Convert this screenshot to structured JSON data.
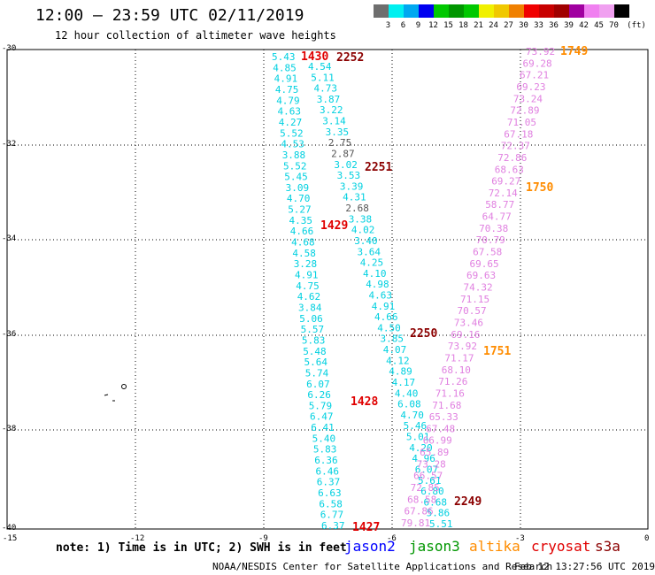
{
  "title": "12:00 – 23:59 UTC 02/11/2019",
  "subtitle": "12 hour collection of altimeter wave heights",
  "colorbar": {
    "labels": [
      "3",
      "6",
      "9",
      "12",
      "15",
      "18",
      "21",
      "24",
      "27",
      "30",
      "33",
      "36",
      "39",
      "42",
      "45",
      "70"
    ],
    "unit": "(ft)",
    "colors": [
      "#6e6e6e",
      "#00f0f0",
      "#00a8f0",
      "#0000f0",
      "#00c800",
      "#009600",
      "#00c800",
      "#f0f000",
      "#f0c800",
      "#f08000",
      "#f00000",
      "#c80000",
      "#a00000",
      "#a000a0",
      "#f080f0",
      "#f0a0f0",
      "#000000"
    ]
  },
  "axes": {
    "lat_labels": [
      "-30",
      "-32",
      "-34",
      "-36",
      "-38",
      "-40"
    ],
    "lon_labels": [
      "-15",
      "-12",
      "-9",
      "-6",
      "-3",
      "0"
    ]
  },
  "note": "note: 1) Time is in UTC; 2) SWH is in feet",
  "legend": [
    {
      "name": "jason2",
      "color": "#0000ff"
    },
    {
      "name": "jason3",
      "color": "#009600"
    },
    {
      "name": "altika",
      "color": "#ff8c00"
    },
    {
      "name": "cryosat",
      "color": "#e00000"
    },
    {
      "name": "s3a",
      "color": "#8b0000"
    }
  ],
  "footer_left": "NOAA/NESDIS Center for Satellite Applications and Research",
  "footer_right": "Feb 12 13:27:56 UTC 2019",
  "colors": {
    "cyan": "#00d0e0",
    "gray": "#555555",
    "pink": "#e080e0",
    "red": "#e00000",
    "darkred": "#8b0000",
    "orange": "#ff8c00"
  },
  "tracks": {
    "track_a": {
      "color_key": "cyan",
      "values": [
        "5.43",
        "4.85",
        "4.91",
        "4.75",
        "4.79",
        "4.63",
        "4.27",
        "5.52",
        "4.53",
        "3.88",
        "5.52",
        "5.45",
        "3.09",
        "4.70",
        "5.27",
        "4.35",
        "4.66",
        "4.68",
        "4.58",
        "3.28",
        "4.91",
        "4.75",
        "4.62",
        "3.84",
        "5.06",
        "5.57",
        "5.83",
        "5.48",
        "5.64",
        "5.74",
        "6.07",
        "6.26",
        "5.79",
        "6.47",
        "6.41",
        "5.40",
        "5.83",
        "6.36",
        "6.46",
        "6.37",
        "6.63",
        "6.58",
        "6.77",
        "6.37"
      ]
    },
    "track_b": {
      "values": [
        {
          "v": "4.54",
          "c": "cyan"
        },
        {
          "v": "5.11",
          "c": "cyan"
        },
        {
          "v": "4.73",
          "c": "cyan"
        },
        {
          "v": "3.87",
          "c": "cyan"
        },
        {
          "v": "3.22",
          "c": "cyan"
        },
        {
          "v": "3.14",
          "c": "cyan"
        },
        {
          "v": "3.35",
          "c": "cyan"
        },
        {
          "v": "2.75",
          "c": "gray"
        },
        {
          "v": "2.87",
          "c": "gray"
        },
        {
          "v": "3.02",
          "c": "cyan"
        },
        {
          "v": "3.53",
          "c": "cyan"
        },
        {
          "v": "3.39",
          "c": "cyan"
        },
        {
          "v": "4.31",
          "c": "cyan"
        },
        {
          "v": "2.68",
          "c": "gray"
        },
        {
          "v": "3.38",
          "c": "cyan"
        },
        {
          "v": "4.02",
          "c": "cyan"
        },
        {
          "v": "3.40",
          "c": "cyan"
        },
        {
          "v": "3.64",
          "c": "cyan"
        },
        {
          "v": "4.25",
          "c": "cyan"
        },
        {
          "v": "4.10",
          "c": "cyan"
        },
        {
          "v": "4.98",
          "c": "cyan"
        },
        {
          "v": "4.63",
          "c": "cyan"
        },
        {
          "v": "4.91",
          "c": "cyan"
        },
        {
          "v": "4.66",
          "c": "cyan"
        },
        {
          "v": "4.50",
          "c": "cyan"
        },
        {
          "v": "3.85",
          "c": "cyan"
        },
        {
          "v": "4.07",
          "c": "cyan"
        },
        {
          "v": "4.12",
          "c": "cyan"
        },
        {
          "v": "4.89",
          "c": "cyan"
        },
        {
          "v": "4.17",
          "c": "cyan"
        },
        {
          "v": "4.40",
          "c": "cyan"
        },
        {
          "v": "6.08",
          "c": "cyan"
        },
        {
          "v": "4.70",
          "c": "cyan"
        },
        {
          "v": "5.46",
          "c": "cyan"
        },
        {
          "v": "5.01",
          "c": "cyan"
        },
        {
          "v": "4.20",
          "c": "cyan"
        },
        {
          "v": "4.96",
          "c": "cyan"
        },
        {
          "v": "6.07",
          "c": "cyan"
        },
        {
          "v": "5.61",
          "c": "cyan"
        },
        {
          "v": "6.80",
          "c": "cyan"
        },
        {
          "v": "6.68",
          "c": "cyan"
        },
        {
          "v": "5.86",
          "c": "cyan"
        },
        {
          "v": "5.51",
          "c": "cyan"
        }
      ]
    },
    "track_c": {
      "color_key": "pink",
      "values": [
        "73.92",
        "69.28",
        "67.21",
        "69.23",
        "73.24",
        "72.89",
        "71.05",
        "67.18",
        "72.37",
        "72.86",
        "68.63",
        "69.27",
        "72.14",
        "58.77",
        "64.77",
        "70.38",
        "70.79",
        "67.58",
        "69.65",
        "69.63",
        "74.32",
        "71.15",
        "70.57",
        "73.46",
        "69.16",
        "73.92",
        "71.17",
        "68.10",
        "71.26",
        "71.16",
        "71.68",
        "65.33",
        "67.48",
        "66.99",
        "65.89",
        "73.28",
        "66.57",
        "72.85",
        "68.58",
        "67.86",
        "79.81"
      ]
    },
    "times": [
      {
        "t": "1430",
        "c": "red"
      },
      {
        "t": "2252",
        "c": "darkred"
      },
      {
        "t": "1749",
        "c": "orange"
      },
      {
        "t": "2251",
        "c": "darkred"
      },
      {
        "t": "1750",
        "c": "orange"
      },
      {
        "t": "1429",
        "c": "red"
      },
      {
        "t": "2250",
        "c": "darkred"
      },
      {
        "t": "1751",
        "c": "orange"
      },
      {
        "t": "1428",
        "c": "red"
      },
      {
        "t": "2249",
        "c": "darkred"
      },
      {
        "t": "1427",
        "c": "red"
      }
    ]
  }
}
